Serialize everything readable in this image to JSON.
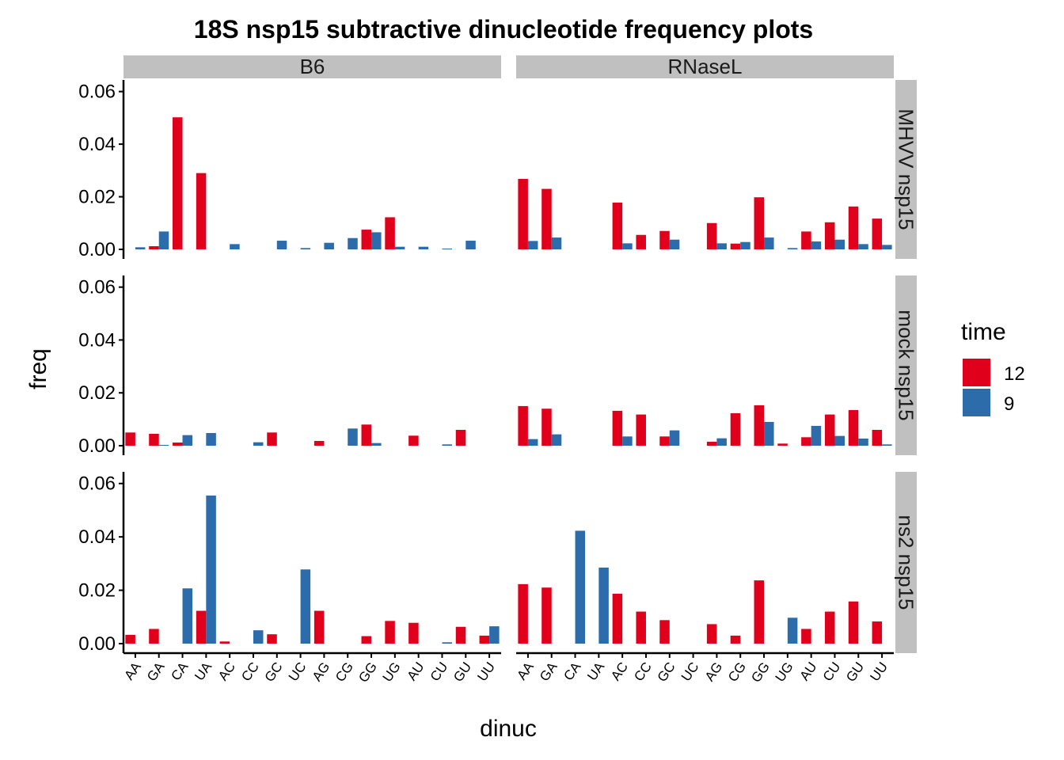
{
  "chart_data": {
    "type": "bar",
    "title": "18S nsp15 subtractive dinucleotide frequency plots",
    "xlabel": "dinuc",
    "ylabel": "freq",
    "ylim": [
      0,
      0.062
    ],
    "y_ticks": [
      "0.00",
      "0.02",
      "0.04",
      "0.06"
    ],
    "y_tick_values": [
      0,
      0.02,
      0.04,
      0.06
    ],
    "categories": [
      "AA",
      "GA",
      "CA",
      "UA",
      "AC",
      "CC",
      "GC",
      "UC",
      "AG",
      "CG",
      "GG",
      "UG",
      "AU",
      "CU",
      "GU",
      "UU"
    ],
    "legend": {
      "title": "time",
      "placement": "right",
      "entries": [
        {
          "label": "12",
          "color": "#E0001B"
        },
        {
          "label": "9",
          "color": "#2D6CAB"
        }
      ]
    },
    "columns": [
      "B6",
      "RNaseL"
    ],
    "rows": [
      "MHVV  nsp15",
      "mock  nsp15",
      "ns2  nsp15"
    ],
    "panels": [
      {
        "row": 0,
        "col": 0,
        "series": [
          {
            "name": "12",
            "values": [
              0,
              0.0012,
              0.0502,
              0.029,
              0,
              0,
              0,
              0,
              0,
              0,
              0.0075,
              0.0122,
              0,
              0,
              0,
              0
            ]
          },
          {
            "name": "9",
            "values": [
              0.0008,
              0.0068,
              0,
              0,
              0.002,
              0,
              0.0033,
              0.0005,
              0.0025,
              0.0043,
              0.0065,
              0.001,
              0.001,
              0.0003,
              0.0033,
              0
            ]
          }
        ]
      },
      {
        "row": 0,
        "col": 1,
        "series": [
          {
            "name": "12",
            "values": [
              0.0268,
              0.023,
              0,
              0,
              0.0178,
              0.0055,
              0.007,
              0,
              0.01,
              0.0022,
              0.0198,
              0,
              0.0068,
              0.0103,
              0.0163,
              0.0117
            ]
          },
          {
            "name": "9",
            "values": [
              0.0032,
              0.0045,
              0,
              0,
              0.0023,
              0,
              0.0037,
              0,
              0.0023,
              0.0028,
              0.0045,
              0.0005,
              0.003,
              0.0037,
              0.002,
              0.0017
            ]
          }
        ]
      },
      {
        "row": 1,
        "col": 0,
        "series": [
          {
            "name": "12",
            "values": [
              0.005,
              0.0045,
              0.0012,
              0,
              0,
              0,
              0.005,
              0,
              0.0018,
              0,
              0.008,
              0,
              0.0038,
              0,
              0.006,
              0
            ]
          },
          {
            "name": "9",
            "values": [
              0,
              0.0003,
              0.004,
              0.0048,
              0,
              0.0013,
              0,
              0,
              0,
              0.0065,
              0.001,
              0,
              0,
              0.0005,
              0,
              0
            ]
          }
        ]
      },
      {
        "row": 1,
        "col": 1,
        "series": [
          {
            "name": "12",
            "values": [
              0.015,
              0.014,
              0,
              0,
              0.0132,
              0.0118,
              0.0035,
              0,
              0.0015,
              0.0123,
              0.0153,
              0.0008,
              0.0032,
              0.0118,
              0.0135,
              0.006
            ]
          },
          {
            "name": "9",
            "values": [
              0.0025,
              0.0043,
              0,
              0,
              0.0035,
              0,
              0.0058,
              0,
              0.0028,
              0,
              0.009,
              0,
              0.0075,
              0.0037,
              0.0027,
              0.0005
            ]
          }
        ]
      },
      {
        "row": 2,
        "col": 0,
        "series": [
          {
            "name": "12",
            "values": [
              0.0033,
              0.0055,
              0,
              0.0123,
              0.0008,
              0,
              0.0035,
              0,
              0.0123,
              0,
              0.0028,
              0.0085,
              0.0078,
              0,
              0.0063,
              0.003
            ]
          },
          {
            "name": "9",
            "values": [
              0,
              0,
              0.0207,
              0.0555,
              0,
              0.005,
              0,
              0.0278,
              0,
              0,
              0,
              0,
              0,
              0.0005,
              0,
              0.0065
            ]
          }
        ]
      },
      {
        "row": 2,
        "col": 1,
        "series": [
          {
            "name": "12",
            "values": [
              0.0223,
              0.021,
              0,
              0,
              0.0187,
              0.012,
              0.0088,
              0,
              0.0073,
              0.003,
              0.0237,
              0,
              0.0055,
              0.012,
              0.0158,
              0.0083
            ]
          },
          {
            "name": "9",
            "values": [
              0,
              0,
              0.0423,
              0.0285,
              0,
              0,
              0,
              0,
              0,
              0,
              0,
              0.0097,
              0,
              0,
              0,
              0
            ]
          }
        ]
      }
    ]
  }
}
